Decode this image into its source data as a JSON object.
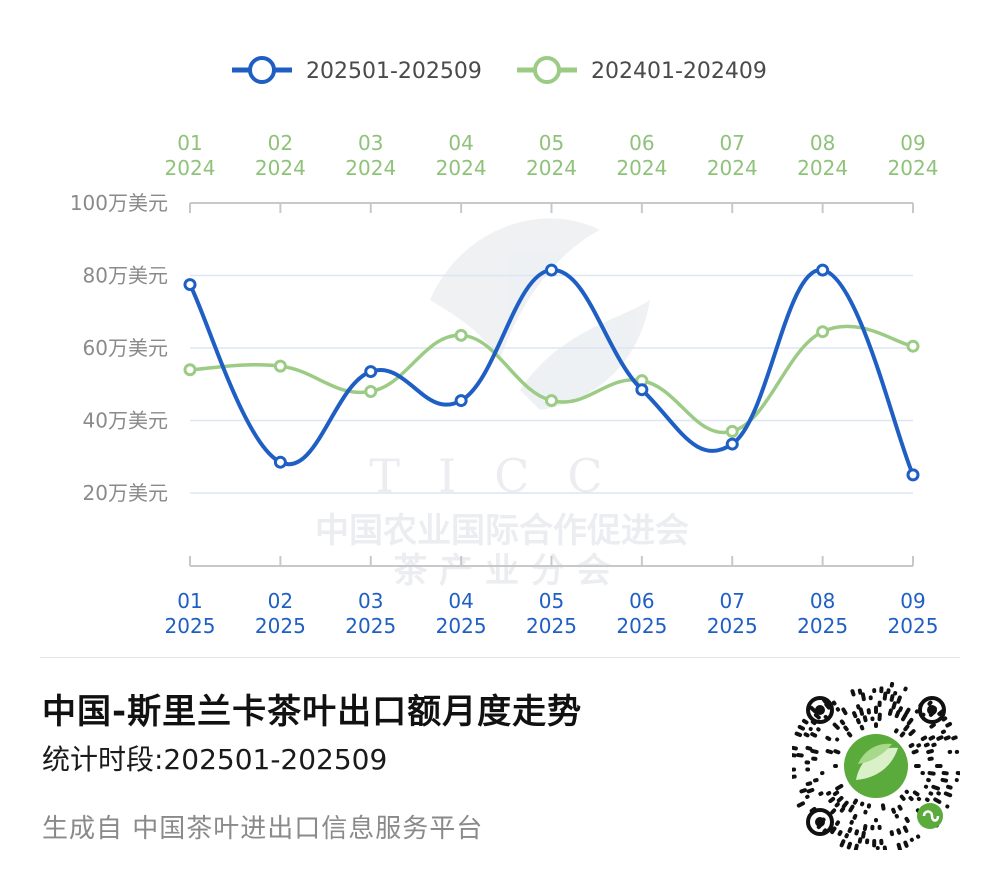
{
  "chart_data": {
    "type": "line",
    "title": "中国-斯里兰卡茶叶出口额月度走势",
    "subtitle": "统计时段:202501-202509",
    "categories": [
      "01",
      "02",
      "03",
      "04",
      "05",
      "06",
      "07",
      "08",
      "09"
    ],
    "x_top_labels": [
      [
        "01",
        "2024"
      ],
      [
        "02",
        "2024"
      ],
      [
        "03",
        "2024"
      ],
      [
        "04",
        "2024"
      ],
      [
        "05",
        "2024"
      ],
      [
        "06",
        "2024"
      ],
      [
        "07",
        "2024"
      ],
      [
        "08",
        "2024"
      ],
      [
        "09",
        "2024"
      ]
    ],
    "x_bottom_labels": [
      [
        "01",
        "2025"
      ],
      [
        "02",
        "2025"
      ],
      [
        "03",
        "2025"
      ],
      [
        "04",
        "2025"
      ],
      [
        "05",
        "2025"
      ],
      [
        "06",
        "2025"
      ],
      [
        "07",
        "2025"
      ],
      [
        "08",
        "2025"
      ],
      [
        "09",
        "2025"
      ]
    ],
    "y_ticks": [
      {
        "value": 20,
        "label": "20万美元"
      },
      {
        "value": 40,
        "label": "40万美元"
      },
      {
        "value": 60,
        "label": "60万美元"
      },
      {
        "value": 80,
        "label": "80万美元"
      },
      {
        "value": 100,
        "label": "100万美元"
      }
    ],
    "ylim": [
      0,
      100
    ],
    "grid": true,
    "legend_position": "top",
    "series": [
      {
        "name": "202501-202509",
        "color": "#1f5fc4",
        "values": [
          77.5,
          28.5,
          53.5,
          45.5,
          81.5,
          48.5,
          33.5,
          81.5,
          25
        ]
      },
      {
        "name": "202401-202409",
        "color": "#9ccb86",
        "values": [
          54,
          55,
          48,
          63.5,
          45.5,
          51,
          37,
          64.5,
          60.5
        ]
      }
    ]
  },
  "watermark": {
    "logo_text": "TICC",
    "line1": "中国农业国际合作促进会",
    "line2": "茶 产 业 分 会"
  },
  "title": "中国-斯里兰卡茶叶出口额月度走势",
  "subtitle": "统计时段:202501-202509",
  "footer": "生成自 中国茶叶进出口信息服务平台",
  "qr": {
    "icon": "mini-program-qr-code",
    "accent": "#5aaa3c"
  }
}
